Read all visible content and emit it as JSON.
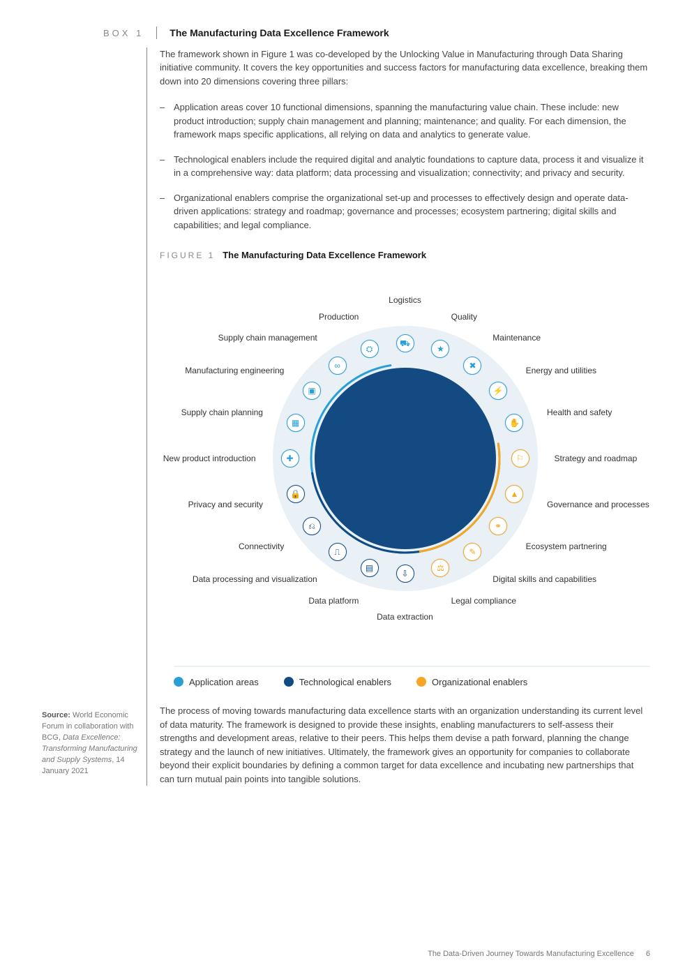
{
  "box": {
    "label": "BOX 1",
    "title": "The Manufacturing Data Excellence Framework",
    "intro": "The framework shown in Figure 1 was co-developed by the Unlocking Value in Manufacturing through Data Sharing initiative community. It covers the key opportunities and success factors for manufacturing data excellence, breaking them down into 20 dimensions covering three pillars:",
    "bullets": [
      "Application areas cover 10 functional dimensions, spanning the manufacturing value chain. These include: new product introduction; supply chain management and planning; maintenance; and quality. For each dimension, the framework maps specific applications, all relying on data and analytics to generate value.",
      "Technological enablers include the required digital and analytic foundations to capture data, process it and visualize it in a comprehensive way: data platform; data processing and visualization; connectivity; and privacy and security.",
      "Organizational enablers comprise the organizational set-up and processes to effectively design and operate data-driven applications: strategy and roadmap; governance and processes; ecosystem partnering; digital skills and capabilities; and legal compliance."
    ],
    "closing": "The process of moving towards manufacturing data excellence starts with an organization understanding its current level of data maturity. The framework is designed to provide these insights, enabling manufacturers to self-assess their strengths and development areas, relative to their peers. This helps them devise a path forward, planning the change strategy and the launch of new initiatives. Ultimately, the framework gives an opportunity for companies to collaborate beyond their explicit boundaries by defining a common target for data excellence and incubating new partnerships that can turn mutual pain points into tangible solutions."
  },
  "figure": {
    "label": "FIGURE 1",
    "title": "The Manufacturing Data Excellence Framework",
    "colors": {
      "outer_ring": "#e9f1f7",
      "inner_circle": "#134a81",
      "node_bg": "#ffffff",
      "application": "#2a9fd6",
      "technological": "#134a81",
      "organizational": "#f5a623"
    },
    "diagram": {
      "outer_radius": 190,
      "node_radius": 165,
      "label_radius_inner": 214,
      "nodes": [
        {
          "label": "Logistics",
          "angle_deg": 90,
          "side": "top",
          "group": "application",
          "glyph": "⛟"
        },
        {
          "label": "Quality",
          "angle_deg": 72,
          "side": "right",
          "group": "application",
          "glyph": "★"
        },
        {
          "label": "Maintenance",
          "angle_deg": 54,
          "side": "right",
          "group": "application",
          "glyph": "✖"
        },
        {
          "label": "Energy and utilities",
          "angle_deg": 36,
          "side": "right",
          "group": "application",
          "glyph": "⚡"
        },
        {
          "label": "Health and safety",
          "angle_deg": 18,
          "side": "right",
          "group": "application",
          "glyph": "✋"
        },
        {
          "label": "Strategy and roadmap",
          "angle_deg": 0,
          "side": "right",
          "group": "organizational",
          "glyph": "⚐"
        },
        {
          "label": "Governance and processes",
          "angle_deg": -18,
          "side": "right",
          "group": "organizational",
          "glyph": "▲"
        },
        {
          "label": "Ecosystem partnering",
          "angle_deg": -36,
          "side": "right",
          "group": "organizational",
          "glyph": "⚭"
        },
        {
          "label": "Digital skills and capabilities",
          "angle_deg": -54,
          "side": "right",
          "group": "organizational",
          "glyph": "✎"
        },
        {
          "label": "Legal compliance",
          "angle_deg": -72,
          "side": "right",
          "group": "organizational",
          "glyph": "⚖"
        },
        {
          "label": "Data extraction",
          "angle_deg": -90,
          "side": "bottom",
          "group": "technological",
          "glyph": "⇩"
        },
        {
          "label": "Data platform",
          "angle_deg": -108,
          "side": "left",
          "group": "technological",
          "glyph": "▤"
        },
        {
          "label": "Data processing and visualization",
          "angle_deg": -126,
          "side": "left",
          "group": "technological",
          "glyph": "⎍"
        },
        {
          "label": "Connectivity",
          "angle_deg": -144,
          "side": "left",
          "group": "technological",
          "glyph": "⎌"
        },
        {
          "label": "Privacy and security",
          "angle_deg": -162,
          "side": "left",
          "group": "technological",
          "glyph": "🔒"
        },
        {
          "label": "New product introduction",
          "angle_deg": 180,
          "side": "left",
          "group": "application",
          "glyph": "✚"
        },
        {
          "label": "Supply chain planning",
          "angle_deg": 162,
          "side": "left",
          "group": "application",
          "glyph": "▦"
        },
        {
          "label": "Manufacturing engineering",
          "angle_deg": 144,
          "side": "left",
          "group": "application",
          "glyph": "▣"
        },
        {
          "label": "Supply chain management",
          "angle_deg": 126,
          "side": "left",
          "group": "application",
          "glyph": "∞"
        },
        {
          "label": "Production",
          "angle_deg": 108,
          "side": "left",
          "group": "application",
          "glyph": "⛭"
        }
      ],
      "arcs": [
        {
          "group": "application",
          "start_deg": 99,
          "end_deg": 369,
          "radius": 135
        },
        {
          "group": "technological",
          "start_deg": -81,
          "end_deg": -171,
          "radius": 135
        },
        {
          "group": "organizational",
          "start_deg": 9,
          "end_deg": -81,
          "radius": 135
        }
      ]
    },
    "legend": [
      {
        "label": "Application areas",
        "color_key": "application"
      },
      {
        "label": "Technological enablers",
        "color_key": "technological"
      },
      {
        "label": "Organizational enablers",
        "color_key": "organizational"
      }
    ]
  },
  "source": {
    "prefix": "Source:",
    "text_before": " World Economic Forum in collaboration with BCG, ",
    "italic": "Data Excellence: Transforming Manufacturing and Supply Systems",
    "text_after": ", 14 January 2021"
  },
  "footer": {
    "doc_title": "The Data-Driven Journey Towards Manufacturing Excellence",
    "page": "6"
  }
}
